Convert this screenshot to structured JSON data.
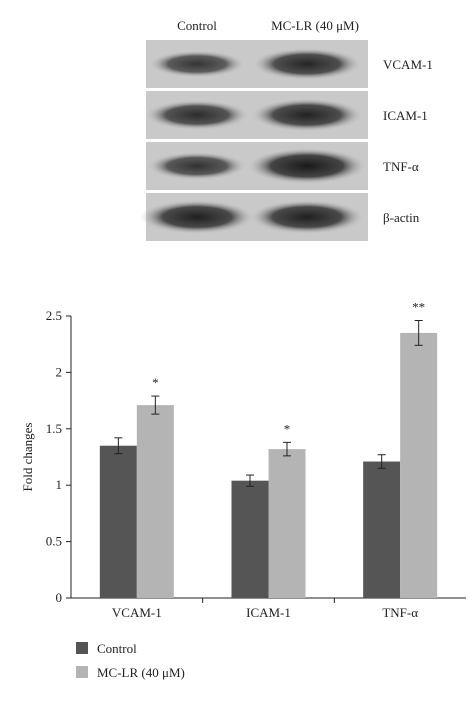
{
  "blot": {
    "lanes": [
      "Control",
      "MC-LR (40 μM)"
    ],
    "rows": [
      {
        "label": "VCAM-1",
        "intensity": [
          0.55,
          0.8
        ]
      },
      {
        "label": "ICAM-1",
        "intensity": [
          0.7,
          0.85
        ]
      },
      {
        "label": "TNF-α",
        "intensity": [
          0.6,
          1.0
        ]
      },
      {
        "label": "β-actin",
        "intensity": [
          0.9,
          0.9
        ]
      }
    ]
  },
  "chart_data": {
    "type": "bar",
    "categories": [
      "VCAM-1",
      "ICAM-1",
      "TNF-α"
    ],
    "series": [
      {
        "name": "Control",
        "values": [
          1.35,
          1.04,
          1.21
        ],
        "errors": [
          0.07,
          0.05,
          0.06
        ],
        "color": "#555555"
      },
      {
        "name": "MC-LR (40 μM)",
        "values": [
          1.71,
          1.32,
          2.35
        ],
        "errors": [
          0.08,
          0.06,
          0.11
        ],
        "color": "#b4b4b4"
      }
    ],
    "significance": [
      "*",
      "*",
      "**"
    ],
    "xlabel": "",
    "ylabel": "Fold changes",
    "ylim": [
      0,
      2.5
    ],
    "yticks": [
      "0",
      "0.5",
      "1",
      "1.5",
      "2",
      "2.5"
    ],
    "grid": false,
    "legend_position": "bottom-left"
  }
}
